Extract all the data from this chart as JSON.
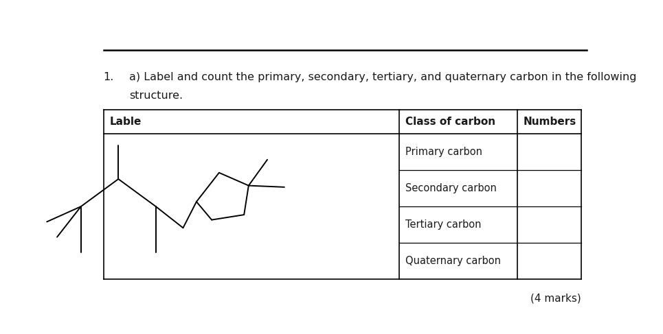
{
  "title_number": "1.",
  "question_text_line1": "a) Label and count the primary, secondary, tertiary, and quaternary carbon in the following",
  "question_text_line2": "structure.",
  "table_header_col1": "Lable",
  "table_header_col2": "Class of carbon",
  "table_header_col3": "Numbers",
  "table_rows": [
    "Primary carbon",
    "Secondary carbon",
    "Tertiary carbon",
    "Quaternary carbon"
  ],
  "marks_text": "(4 marks)",
  "background_color": "#ffffff",
  "text_color": "#1a1a1a",
  "font_size_question": 11.5,
  "font_size_table": 11,
  "font_size_marks": 11
}
